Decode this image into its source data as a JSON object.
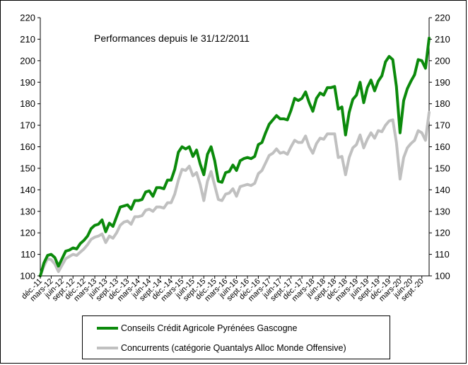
{
  "chart_data": {
    "type": "line",
    "title": "Performances depuis le 31/12/2011",
    "xlabel": "",
    "ylabel": "",
    "ylim": [
      100,
      220
    ],
    "yticks": [
      100,
      110,
      120,
      130,
      140,
      150,
      160,
      170,
      180,
      190,
      200,
      210,
      220
    ],
    "secondary_yticks": [
      100,
      110,
      120,
      130,
      140,
      150,
      160,
      170,
      180,
      190,
      200,
      210,
      220
    ],
    "grid": false,
    "legend_position": "bottom",
    "x_labels": [
      "déc.-11",
      "mars-12",
      "juin-12",
      "sept.-12",
      "déc.-12",
      "mars-13",
      "juin-13",
      "sept.-13",
      "déc.-13",
      "mars-14",
      "juin-14",
      "sept.-14",
      "déc.-14",
      "mars-15",
      "juin-15",
      "sept.-15",
      "déc.-15",
      "mars-16",
      "juin-16",
      "sept.-16",
      "déc.-16",
      "mars-17",
      "juin-17",
      "sept.-17",
      "déc.-17",
      "mars-18",
      "juin-18",
      "sept.-18",
      "déc.-18",
      "mars-19",
      "juin-19",
      "sept.-19",
      "déc.-19",
      "mars-20",
      "juin-20",
      "sept.-20"
    ],
    "series": [
      {
        "name": "Conseils Crédit Agricole Pyrénées Gascogne",
        "color": "#0b8a0b",
        "values": [
          100,
          106,
          109.5,
          110,
          108.5,
          104.5,
          108,
          111.5,
          112,
          113,
          112.5,
          115,
          116.5,
          118.5,
          122,
          123.5,
          124,
          126,
          120.5,
          124.5,
          123,
          127.5,
          132,
          132.5,
          133,
          131,
          135,
          135,
          135.5,
          139,
          139.5,
          137,
          141,
          141,
          140.5,
          144.5,
          144.5,
          149.5,
          157.5,
          160,
          159,
          160,
          155.5,
          158.5,
          152,
          147,
          156.5,
          160,
          153.5,
          144,
          143.5,
          148,
          148.5,
          151.5,
          149,
          153.5,
          154.5,
          155,
          154.5,
          155.5,
          161,
          162,
          166.5,
          170.5,
          172.5,
          174.5,
          173,
          173,
          172.5,
          177,
          182.5,
          181.5,
          182.5,
          185.5,
          180.5,
          176.5,
          182.5,
          185,
          184,
          187.5,
          187.5,
          188,
          177.5,
          178.5,
          165.5,
          176,
          182,
          184,
          190,
          180.5,
          187.5,
          191,
          186,
          190.5,
          193,
          199.5,
          202,
          200.5,
          188,
          166.5,
          181.5,
          187,
          190.5,
          193.5,
          200.5,
          200,
          196.5,
          210.5
        ]
      },
      {
        "name": "Concurrents (catégorie Quantalys Alloc Monde Offensive)",
        "color": "#c0c0c0",
        "values": [
          100,
          104.5,
          108,
          107.5,
          105.5,
          102,
          105,
          108,
          109,
          110,
          109.5,
          111,
          112.5,
          114.5,
          117,
          118,
          118.5,
          119.5,
          115.5,
          118.5,
          117.5,
          120,
          123.5,
          125,
          125.5,
          124,
          127.5,
          127.5,
          128,
          130.5,
          131,
          130,
          132,
          132,
          131.5,
          134,
          134,
          138,
          144.5,
          149.5,
          149,
          151,
          146.5,
          148,
          142.5,
          135,
          144,
          148.5,
          142,
          135.5,
          135,
          138,
          138.5,
          140.5,
          137,
          141.5,
          142,
          142.5,
          142,
          143,
          147.5,
          149,
          152.5,
          156,
          157,
          159,
          157,
          157.5,
          156.5,
          160,
          163,
          162,
          162,
          165,
          160,
          157,
          161.5,
          164,
          163.5,
          166,
          166,
          166,
          155,
          155.5,
          147,
          155,
          159.5,
          161,
          165.5,
          159.5,
          163.5,
          166.5,
          164,
          167.5,
          167,
          170,
          172,
          172.5,
          162,
          145,
          155,
          159.5,
          161.5,
          163,
          167.5,
          166.5,
          163,
          176
        ]
      }
    ]
  }
}
